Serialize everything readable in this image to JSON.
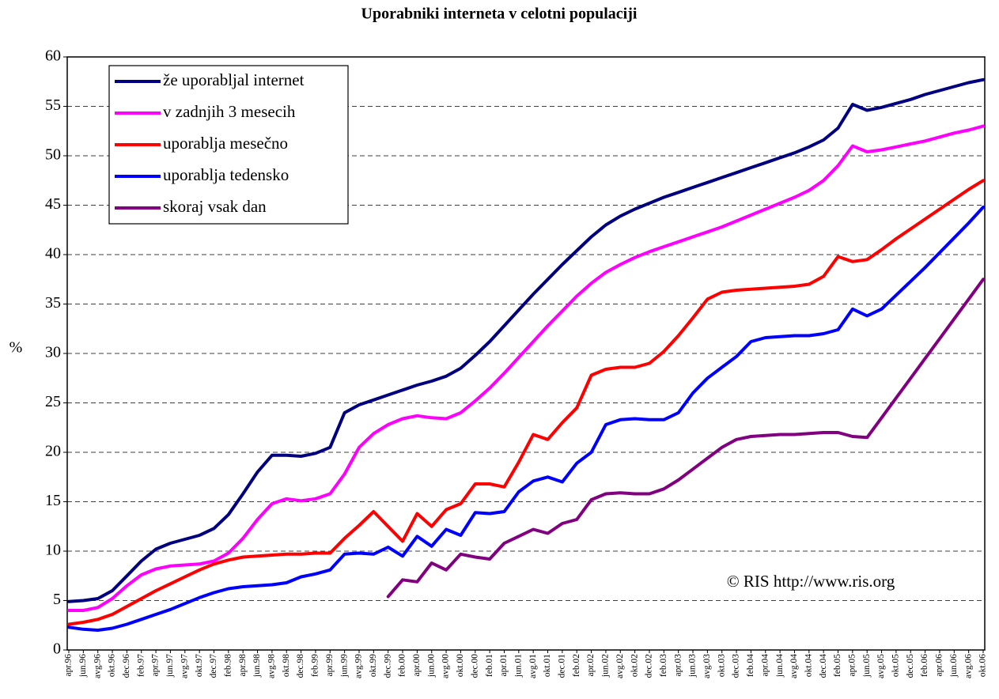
{
  "chart_data": {
    "type": "line",
    "title": "Uporabniki interneta v celotni populaciji",
    "y_label": "%",
    "annotation": "© RIS http://www.ris.org",
    "categories": [
      "apr.96",
      "jun.96",
      "avg.96",
      "okt.96",
      "dec.96",
      "feb.97",
      "apr.97",
      "jun.97",
      "avg.97",
      "okt.97",
      "dec.97",
      "feb.98",
      "apr.98",
      "jun.98",
      "avg.98",
      "okt.98",
      "dec.98",
      "feb.99",
      "apr.99",
      "jun.99",
      "avg.99",
      "okt.99",
      "dec.99",
      "feb.00",
      "apr.00",
      "jun.00",
      "avg.00",
      "okt.00",
      "dec.00",
      "feb.01",
      "apr.01",
      "jun.01",
      "avg.01",
      "okt.01",
      "dec.01",
      "feb.02",
      "apr.02",
      "jun.02",
      "avg.02",
      "okt.02",
      "dec.02",
      "feb.03",
      "apr.03",
      "jun.03",
      "avg.03",
      "okt.03",
      "dec.03",
      "feb.04",
      "apr.04",
      "jun.04",
      "avg.04",
      "okt.04",
      "dec.04",
      "feb.05",
      "apr.05",
      "jun.05",
      "avg.05",
      "okt.05",
      "dec.05",
      "feb.06",
      "apr.06",
      "jun.06",
      "avg.06",
      "okt.06"
    ],
    "series": [
      {
        "name": "že uporabljal internet",
        "color": "#000080",
        "values": [
          4.9,
          5.0,
          5.2,
          6.0,
          7.5,
          9.0,
          10.2,
          10.8,
          11.2,
          11.6,
          12.3,
          13.7,
          15.8,
          18.0,
          19.7,
          19.7,
          19.6,
          19.9,
          20.5,
          24.0,
          24.8,
          25.3,
          25.8,
          26.3,
          26.8,
          27.2,
          27.7,
          28.5,
          29.8,
          31.2,
          32.8,
          34.4,
          36.0,
          37.5,
          39.0,
          40.4,
          41.8,
          43.0,
          43.9,
          44.6,
          45.2,
          45.8,
          46.3,
          46.8,
          47.3,
          47.8,
          48.3,
          48.8,
          49.3,
          49.8,
          50.3,
          50.9,
          51.6,
          52.8,
          55.2,
          54.6,
          54.9,
          55.3,
          55.7,
          56.2,
          56.6,
          57.0,
          57.4,
          57.7
        ]
      },
      {
        "name": "v zadnjih 3 mesecih",
        "color": "#ff00ff",
        "values": [
          4.0,
          4.0,
          4.3,
          5.2,
          6.5,
          7.6,
          8.2,
          8.5,
          8.6,
          8.7,
          9.0,
          9.8,
          11.3,
          13.2,
          14.8,
          15.3,
          15.1,
          15.3,
          15.8,
          17.8,
          20.5,
          21.9,
          22.8,
          23.4,
          23.7,
          23.5,
          23.4,
          24.0,
          25.2,
          26.5,
          28.0,
          29.6,
          31.2,
          32.8,
          34.3,
          35.8,
          37.1,
          38.2,
          39.0,
          39.7,
          40.3,
          40.8,
          41.3,
          41.8,
          42.3,
          42.8,
          43.4,
          44.0,
          44.6,
          45.2,
          45.8,
          46.5,
          47.5,
          49.0,
          51.0,
          50.4,
          50.6,
          50.9,
          51.2,
          51.5,
          51.9,
          52.3,
          52.6,
          53.0
        ]
      },
      {
        "name": "uporablja mesečno",
        "color": "#ff0000",
        "values": [
          2.6,
          2.8,
          3.1,
          3.6,
          4.4,
          5.2,
          6.0,
          6.7,
          7.4,
          8.1,
          8.7,
          9.1,
          9.4,
          9.5,
          9.6,
          9.7,
          9.7,
          9.8,
          9.8,
          11.3,
          12.6,
          14.0,
          12.5,
          11.0,
          13.8,
          12.5,
          14.2,
          14.8,
          16.8,
          16.8,
          16.5,
          19.0,
          21.8,
          21.3,
          23.0,
          24.5,
          27.8,
          28.4,
          28.6,
          28.6,
          29.0,
          30.2,
          31.8,
          33.6,
          35.5,
          36.2,
          36.4,
          36.5,
          36.6,
          36.7,
          36.8,
          37.0,
          37.8,
          39.8,
          39.3,
          39.5,
          40.5,
          41.6,
          42.6,
          43.6,
          44.6,
          45.6,
          46.6,
          47.5
        ]
      },
      {
        "name": "uporablja tedensko",
        "color": "#0000ff",
        "values": [
          2.3,
          2.1,
          2.0,
          2.2,
          2.6,
          3.1,
          3.6,
          4.1,
          4.7,
          5.3,
          5.8,
          6.2,
          6.4,
          6.5,
          6.6,
          6.8,
          7.4,
          7.7,
          8.1,
          9.7,
          9.8,
          9.7,
          10.4,
          9.5,
          11.5,
          10.5,
          12.2,
          11.6,
          13.9,
          13.8,
          14.0,
          16.0,
          17.1,
          17.5,
          17.0,
          18.9,
          20.0,
          22.8,
          23.3,
          23.4,
          23.3,
          23.3,
          24.0,
          26.0,
          27.5,
          28.6,
          29.7,
          31.2,
          31.6,
          31.7,
          31.8,
          31.8,
          32.0,
          32.4,
          34.5,
          33.8,
          34.5,
          35.9,
          37.3,
          38.7,
          40.2,
          41.7,
          43.2,
          44.8
        ]
      },
      {
        "name": "skoraj vsak dan",
        "color": "#800080",
        "values": [
          null,
          null,
          null,
          null,
          null,
          null,
          null,
          null,
          null,
          null,
          null,
          null,
          null,
          null,
          null,
          null,
          null,
          null,
          null,
          null,
          null,
          null,
          5.4,
          7.1,
          6.9,
          8.8,
          8.1,
          9.7,
          9.4,
          9.2,
          10.8,
          11.5,
          12.2,
          11.8,
          12.8,
          13.2,
          15.2,
          15.8,
          15.9,
          15.8,
          15.8,
          16.3,
          17.2,
          18.3,
          19.4,
          20.5,
          21.3,
          21.6,
          21.7,
          21.8,
          21.8,
          21.9,
          22.0,
          22.0,
          21.6,
          21.5,
          23.5,
          25.5,
          27.5,
          29.5,
          31.5,
          33.5,
          35.5,
          37.5
        ]
      }
    ],
    "ylim": [
      0,
      60
    ],
    "yticks": [
      0,
      5,
      10,
      15,
      20,
      25,
      30,
      35,
      40,
      45,
      50,
      55,
      60
    ],
    "grid": true,
    "legend": "upper left"
  }
}
